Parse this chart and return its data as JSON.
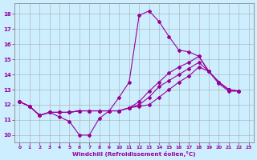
{
  "xlabel": "Windchill (Refroidissement éolien,°C)",
  "background_color": "#cceeff",
  "line_color": "#990099",
  "grid_color": "#aaaaaa",
  "xlim_min": -0.5,
  "xlim_max": 23.5,
  "ylim_min": 9.5,
  "ylim_max": 18.7,
  "xticks": [
    0,
    1,
    2,
    3,
    4,
    5,
    6,
    7,
    8,
    9,
    10,
    11,
    12,
    13,
    14,
    15,
    16,
    17,
    18,
    19,
    20,
    21,
    22,
    23
  ],
  "yticks": [
    10,
    11,
    12,
    13,
    14,
    15,
    16,
    17,
    18
  ],
  "series": [
    {
      "x": [
        0,
        1,
        2,
        3,
        4,
        5,
        6,
        7,
        8,
        9,
        10,
        11,
        12,
        13,
        14,
        15,
        16,
        17,
        18,
        19,
        20,
        21,
        22
      ],
      "y": [
        12.2,
        11.9,
        11.3,
        11.5,
        11.2,
        10.9,
        10.0,
        10.0,
        11.1,
        11.6,
        12.5,
        13.5,
        17.9,
        18.2,
        17.5,
        16.5,
        15.6,
        15.5,
        15.2,
        14.2,
        13.5,
        13.0,
        12.9
      ]
    },
    {
      "x": [
        0,
        1,
        2,
        3,
        4,
        5,
        6,
        7,
        8,
        9,
        10,
        11,
        12,
        13,
        14,
        15,
        16,
        17,
        18,
        19,
        20,
        21,
        22
      ],
      "y": [
        12.2,
        11.9,
        11.3,
        11.5,
        11.5,
        11.5,
        11.6,
        11.6,
        11.6,
        11.6,
        11.6,
        11.8,
        12.2,
        12.9,
        13.5,
        14.1,
        14.5,
        14.8,
        15.2,
        14.2,
        13.5,
        13.0,
        12.9
      ]
    },
    {
      "x": [
        0,
        1,
        2,
        3,
        4,
        5,
        6,
        7,
        8,
        9,
        10,
        11,
        12,
        13,
        14,
        15,
        16,
        17,
        18,
        19,
        20,
        21,
        22
      ],
      "y": [
        12.2,
        11.9,
        11.3,
        11.5,
        11.5,
        11.5,
        11.6,
        11.6,
        11.6,
        11.6,
        11.6,
        11.8,
        12.0,
        12.5,
        13.2,
        13.6,
        14.0,
        14.4,
        14.8,
        14.2,
        13.5,
        13.0,
        12.9
      ]
    },
    {
      "x": [
        0,
        1,
        2,
        3,
        4,
        5,
        6,
        7,
        8,
        9,
        10,
        11,
        12,
        13,
        14,
        15,
        16,
        17,
        18,
        19,
        20,
        21,
        22
      ],
      "y": [
        12.2,
        11.9,
        11.3,
        11.5,
        11.5,
        11.5,
        11.6,
        11.6,
        11.6,
        11.6,
        11.6,
        11.8,
        11.9,
        12.0,
        12.5,
        13.0,
        13.5,
        13.9,
        14.5,
        14.2,
        13.4,
        12.9,
        12.9
      ]
    }
  ]
}
